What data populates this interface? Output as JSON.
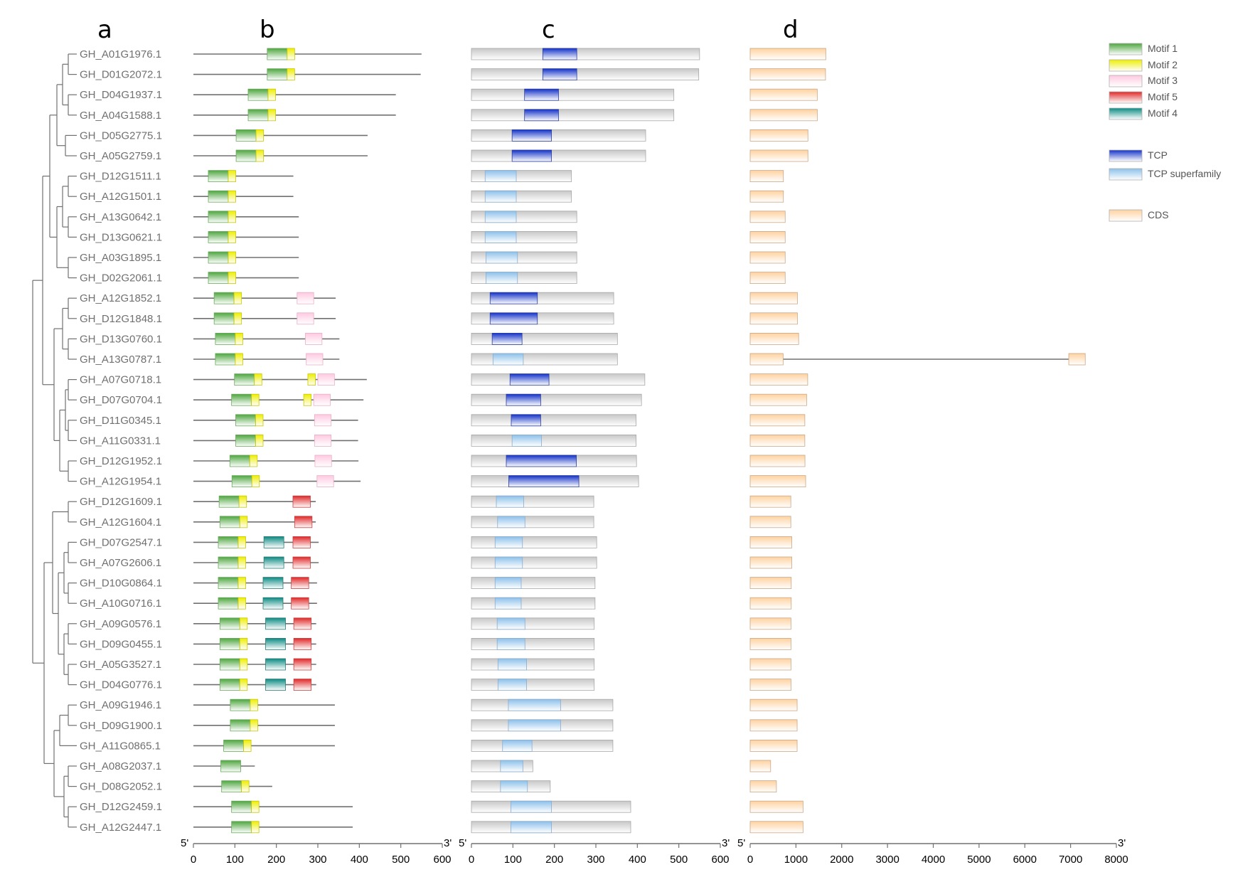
{
  "panel_labels": {
    "a": "a",
    "b": "b",
    "c": "c",
    "d": "d"
  },
  "genes": [
    "GH_A01G1976.1",
    "GH_D01G2072.1",
    "GH_D04G1937.1",
    "GH_A04G1588.1",
    "GH_D05G2775.1",
    "GH_A05G2759.1",
    "GH_D12G1511.1",
    "GH_A12G1501.1",
    "GH_A13G0642.1",
    "GH_D13G0621.1",
    "GH_A03G1895.1",
    "GH_D02G2061.1",
    "GH_A12G1852.1",
    "GH_D12G1848.1",
    "GH_D13G0760.1",
    "GH_A13G0787.1",
    "GH_A07G0718.1",
    "GH_D07G0704.1",
    "GH_D11G0345.1",
    "GH_A11G0331.1",
    "GH_D12G1952.1",
    "GH_A12G1954.1",
    "GH_D12G1609.1",
    "GH_A12G1604.1",
    "GH_D07G2547.1",
    "GH_A07G2606.1",
    "GH_D10G0864.1",
    "GH_A10G0716.1",
    "GH_A09G0576.1",
    "GH_D09G0455.1",
    "GH_A05G3527.1",
    "GH_D04G0776.1",
    "GH_A09G1946.1",
    "GH_D09G1900.1",
    "GH_A11G0865.1",
    "GH_A08G2037.1",
    "GH_D08G2052.1",
    "GH_D12G2459.1",
    "GH_A12G2447.1"
  ],
  "motif_panel": {
    "axis": {
      "ticks": [
        0,
        100,
        200,
        300,
        400,
        500,
        600
      ],
      "start_label": "5'",
      "end_label": "3'",
      "max": 600
    },
    "lengths": [
      550,
      548,
      488,
      488,
      420,
      420,
      241,
      241,
      254,
      254,
      254,
      254,
      343,
      343,
      352,
      352,
      418,
      410,
      397,
      397,
      398,
      403,
      295,
      295,
      302,
      302,
      298,
      298,
      296,
      296,
      296,
      296,
      341,
      341,
      341,
      148,
      190,
      384,
      384
    ],
    "motifs": [
      [
        {
          "m": 1,
          "s": 178,
          "e": 226
        },
        {
          "m": 2,
          "s": 226,
          "e": 244
        }
      ],
      [
        {
          "m": 1,
          "s": 178,
          "e": 226
        },
        {
          "m": 2,
          "s": 226,
          "e": 244
        }
      ],
      [
        {
          "m": 1,
          "s": 132,
          "e": 180
        },
        {
          "m": 2,
          "s": 180,
          "e": 198
        }
      ],
      [
        {
          "m": 1,
          "s": 132,
          "e": 180
        },
        {
          "m": 2,
          "s": 180,
          "e": 198
        }
      ],
      [
        {
          "m": 1,
          "s": 103,
          "e": 151
        },
        {
          "m": 2,
          "s": 151,
          "e": 169
        }
      ],
      [
        {
          "m": 1,
          "s": 103,
          "e": 151
        },
        {
          "m": 2,
          "s": 151,
          "e": 169
        }
      ],
      [
        {
          "m": 1,
          "s": 36,
          "e": 84
        },
        {
          "m": 2,
          "s": 84,
          "e": 102
        }
      ],
      [
        {
          "m": 1,
          "s": 36,
          "e": 84
        },
        {
          "m": 2,
          "s": 84,
          "e": 102
        }
      ],
      [
        {
          "m": 1,
          "s": 36,
          "e": 84
        },
        {
          "m": 2,
          "s": 84,
          "e": 102
        }
      ],
      [
        {
          "m": 1,
          "s": 36,
          "e": 84
        },
        {
          "m": 2,
          "s": 84,
          "e": 102
        }
      ],
      [
        {
          "m": 1,
          "s": 36,
          "e": 84
        },
        {
          "m": 2,
          "s": 84,
          "e": 102
        }
      ],
      [
        {
          "m": 1,
          "s": 36,
          "e": 84
        },
        {
          "m": 2,
          "s": 84,
          "e": 102
        }
      ],
      [
        {
          "m": 1,
          "s": 50,
          "e": 98
        },
        {
          "m": 2,
          "s": 98,
          "e": 116
        },
        {
          "m": 3,
          "s": 250,
          "e": 290
        }
      ],
      [
        {
          "m": 1,
          "s": 50,
          "e": 98
        },
        {
          "m": 2,
          "s": 98,
          "e": 116
        },
        {
          "m": 3,
          "s": 250,
          "e": 290
        }
      ],
      [
        {
          "m": 1,
          "s": 53,
          "e": 101
        },
        {
          "m": 2,
          "s": 101,
          "e": 119
        },
        {
          "m": 3,
          "s": 270,
          "e": 310
        }
      ],
      [
        {
          "m": 1,
          "s": 53,
          "e": 101
        },
        {
          "m": 2,
          "s": 101,
          "e": 119
        },
        {
          "m": 3,
          "s": 272,
          "e": 312
        }
      ],
      [
        {
          "m": 1,
          "s": 99,
          "e": 147
        },
        {
          "m": 2,
          "s": 147,
          "e": 165
        },
        {
          "m": 2,
          "s": 276,
          "e": 294
        },
        {
          "m": 3,
          "s": 300,
          "e": 340
        }
      ],
      [
        {
          "m": 1,
          "s": 92,
          "e": 140
        },
        {
          "m": 2,
          "s": 140,
          "e": 158
        },
        {
          "m": 2,
          "s": 266,
          "e": 284
        },
        {
          "m": 3,
          "s": 290,
          "e": 330
        }
      ],
      [
        {
          "m": 1,
          "s": 102,
          "e": 150
        },
        {
          "m": 2,
          "s": 150,
          "e": 168
        },
        {
          "m": 3,
          "s": 292,
          "e": 332
        }
      ],
      [
        {
          "m": 1,
          "s": 102,
          "e": 150
        },
        {
          "m": 2,
          "s": 150,
          "e": 168
        },
        {
          "m": 3,
          "s": 292,
          "e": 332
        }
      ],
      [
        {
          "m": 1,
          "s": 88,
          "e": 136
        },
        {
          "m": 2,
          "s": 136,
          "e": 154
        },
        {
          "m": 3,
          "s": 293,
          "e": 333
        }
      ],
      [
        {
          "m": 1,
          "s": 93,
          "e": 141
        },
        {
          "m": 2,
          "s": 141,
          "e": 159
        },
        {
          "m": 3,
          "s": 298,
          "e": 338
        }
      ],
      [
        {
          "m": 1,
          "s": 62,
          "e": 110
        },
        {
          "m": 2,
          "s": 110,
          "e": 128
        },
        {
          "m": 5,
          "s": 240,
          "e": 282
        }
      ],
      [
        {
          "m": 1,
          "s": 64,
          "e": 112
        },
        {
          "m": 2,
          "s": 112,
          "e": 130
        },
        {
          "m": 5,
          "s": 244,
          "e": 286
        }
      ],
      [
        {
          "m": 1,
          "s": 60,
          "e": 108
        },
        {
          "m": 2,
          "s": 108,
          "e": 126
        },
        {
          "m": 4,
          "s": 170,
          "e": 218
        },
        {
          "m": 5,
          "s": 240,
          "e": 282
        }
      ],
      [
        {
          "m": 1,
          "s": 60,
          "e": 108
        },
        {
          "m": 2,
          "s": 108,
          "e": 126
        },
        {
          "m": 4,
          "s": 170,
          "e": 218
        },
        {
          "m": 5,
          "s": 240,
          "e": 282
        }
      ],
      [
        {
          "m": 1,
          "s": 60,
          "e": 108
        },
        {
          "m": 2,
          "s": 108,
          "e": 126
        },
        {
          "m": 4,
          "s": 168,
          "e": 216
        },
        {
          "m": 5,
          "s": 236,
          "e": 278
        }
      ],
      [
        {
          "m": 1,
          "s": 60,
          "e": 108
        },
        {
          "m": 2,
          "s": 108,
          "e": 126
        },
        {
          "m": 4,
          "s": 168,
          "e": 216
        },
        {
          "m": 5,
          "s": 236,
          "e": 278
        }
      ],
      [
        {
          "m": 1,
          "s": 64,
          "e": 112
        },
        {
          "m": 2,
          "s": 112,
          "e": 130
        },
        {
          "m": 4,
          "s": 174,
          "e": 222
        },
        {
          "m": 5,
          "s": 242,
          "e": 284
        }
      ],
      [
        {
          "m": 1,
          "s": 64,
          "e": 112
        },
        {
          "m": 2,
          "s": 112,
          "e": 130
        },
        {
          "m": 4,
          "s": 174,
          "e": 222
        },
        {
          "m": 5,
          "s": 242,
          "e": 284
        }
      ],
      [
        {
          "m": 1,
          "s": 64,
          "e": 112
        },
        {
          "m": 2,
          "s": 112,
          "e": 130
        },
        {
          "m": 4,
          "s": 174,
          "e": 222
        },
        {
          "m": 5,
          "s": 242,
          "e": 284
        }
      ],
      [
        {
          "m": 1,
          "s": 64,
          "e": 112
        },
        {
          "m": 2,
          "s": 112,
          "e": 130
        },
        {
          "m": 4,
          "s": 174,
          "e": 222
        },
        {
          "m": 5,
          "s": 242,
          "e": 284
        }
      ],
      [
        {
          "m": 1,
          "s": 89,
          "e": 137
        },
        {
          "m": 2,
          "s": 137,
          "e": 155
        }
      ],
      [
        {
          "m": 1,
          "s": 89,
          "e": 137
        },
        {
          "m": 2,
          "s": 137,
          "e": 155
        }
      ],
      [
        {
          "m": 1,
          "s": 73,
          "e": 121
        },
        {
          "m": 2,
          "s": 121,
          "e": 139
        }
      ],
      [
        {
          "m": 1,
          "s": 66,
          "e": 114
        }
      ],
      [
        {
          "m": 1,
          "s": 68,
          "e": 116
        },
        {
          "m": 2,
          "s": 116,
          "e": 134
        }
      ],
      [
        {
          "m": 1,
          "s": 92,
          "e": 140
        },
        {
          "m": 2,
          "s": 140,
          "e": 158
        }
      ],
      [
        {
          "m": 1,
          "s": 92,
          "e": 140
        },
        {
          "m": 2,
          "s": 140,
          "e": 158
        }
      ]
    ]
  },
  "domain_panel": {
    "axis": {
      "ticks": [
        0,
        100,
        200,
        300,
        400,
        500,
        600
      ],
      "start_label": "5'",
      "end_label": "3'",
      "max": 600
    },
    "lengths": [
      550,
      548,
      488,
      488,
      420,
      420,
      241,
      241,
      254,
      254,
      254,
      254,
      343,
      343,
      352,
      352,
      418,
      410,
      397,
      397,
      398,
      403,
      295,
      295,
      302,
      302,
      298,
      298,
      296,
      296,
      296,
      296,
      341,
      341,
      341,
      148,
      190,
      384,
      384
    ],
    "domains": [
      {
        "t": "TCP",
        "s": 172,
        "e": 254
      },
      {
        "t": "TCP",
        "s": 172,
        "e": 254
      },
      {
        "t": "TCP",
        "s": 128,
        "e": 210
      },
      {
        "t": "TCP",
        "s": 128,
        "e": 210
      },
      {
        "t": "TCP",
        "s": 98,
        "e": 193
      },
      {
        "t": "TCP",
        "s": 98,
        "e": 193
      },
      {
        "t": "TCPsf",
        "s": 33,
        "e": 108
      },
      {
        "t": "TCPsf",
        "s": 33,
        "e": 108
      },
      {
        "t": "TCPsf",
        "s": 33,
        "e": 108
      },
      {
        "t": "TCPsf",
        "s": 33,
        "e": 108
      },
      {
        "t": "TCPsf",
        "s": 35,
        "e": 111
      },
      {
        "t": "TCPsf",
        "s": 35,
        "e": 111
      },
      {
        "t": "TCP",
        "s": 45,
        "e": 159
      },
      {
        "t": "TCP",
        "s": 45,
        "e": 159
      },
      {
        "t": "TCP",
        "s": 50,
        "e": 122
      },
      {
        "t": "TCPsf",
        "s": 52,
        "e": 125
      },
      {
        "t": "TCP",
        "s": 93,
        "e": 187
      },
      {
        "t": "TCP",
        "s": 84,
        "e": 167
      },
      {
        "t": "TCP",
        "s": 96,
        "e": 167
      },
      {
        "t": "TCPsf",
        "s": 98,
        "e": 169
      },
      {
        "t": "TCP",
        "s": 84,
        "e": 253
      },
      {
        "t": "TCP",
        "s": 90,
        "e": 259
      },
      {
        "t": "TCPsf",
        "s": 60,
        "e": 126
      },
      {
        "t": "TCPsf",
        "s": 63,
        "e": 129
      },
      {
        "t": "TCPsf",
        "s": 57,
        "e": 123
      },
      {
        "t": "TCPsf",
        "s": 57,
        "e": 123
      },
      {
        "t": "TCPsf",
        "s": 57,
        "e": 120
      },
      {
        "t": "TCPsf",
        "s": 57,
        "e": 120
      },
      {
        "t": "TCPsf",
        "s": 62,
        "e": 129
      },
      {
        "t": "TCPsf",
        "s": 62,
        "e": 129
      },
      {
        "t": "TCPsf",
        "s": 64,
        "e": 133
      },
      {
        "t": "TCPsf",
        "s": 64,
        "e": 133
      },
      {
        "t": "TCPsf",
        "s": 89,
        "e": 215
      },
      {
        "t": "TCPsf",
        "s": 89,
        "e": 215
      },
      {
        "t": "TCPsf",
        "s": 75,
        "e": 146
      },
      {
        "t": "TCPsf",
        "s": 70,
        "e": 124
      },
      {
        "t": "TCPsf",
        "s": 70,
        "e": 135
      },
      {
        "t": "TCPsf",
        "s": 95,
        "e": 193
      },
      {
        "t": "TCPsf",
        "s": 95,
        "e": 193
      }
    ]
  },
  "gene_panel": {
    "axis": {
      "ticks": [
        0,
        1000,
        2000,
        3000,
        4000,
        5000,
        6000,
        7000,
        8000
      ],
      "start_label": "5'",
      "end_label": "3'",
      "max": 8000
    },
    "cds": [
      1652,
      1646,
      1466,
      1466,
      1262,
      1262,
      726,
      726,
      765,
      765,
      765,
      765,
      1032,
      1032,
      1059,
      null,
      1257,
      1233,
      1194,
      1194,
      1197,
      1212,
      888,
      888,
      909,
      909,
      897,
      897,
      891,
      891,
      891,
      891,
      1026,
      1026,
      1026,
      447,
      573,
      1155,
      1155
    ],
    "split_gene": {
      "index": 15,
      "exon1_end": 720,
      "exon2_start": 6960,
      "exon2_end": 7320
    }
  },
  "legend": {
    "items": [
      {
        "label": "Motif 1",
        "color": "#55b046"
      },
      {
        "label": "Motif 2",
        "color": "#f2f200"
      },
      {
        "label": "Motif 3",
        "color": "#ffc9e0"
      },
      {
        "label": "Motif 5",
        "color": "#e83a3a"
      },
      {
        "label": "Motif 4",
        "color": "#11928a"
      },
      {
        "label": "TCP",
        "color": "#1e3fd0"
      },
      {
        "label": "TCP superfamily",
        "color": "#9cc8ec"
      },
      {
        "label": "CDS",
        "color": "#ffd6a8"
      }
    ]
  },
  "colors": {
    "motif1": "#55b046",
    "motif2": "#f2f200",
    "motif3": "#ffc9e0",
    "motif4": "#11928a",
    "motif5": "#e83a3a",
    "tcp": "#1e3fd0",
    "tcp_superfamily": "#9cc8ec",
    "cds": "#ffd6a8",
    "protein_bar": "#d4d4d4",
    "line": "#707070"
  }
}
